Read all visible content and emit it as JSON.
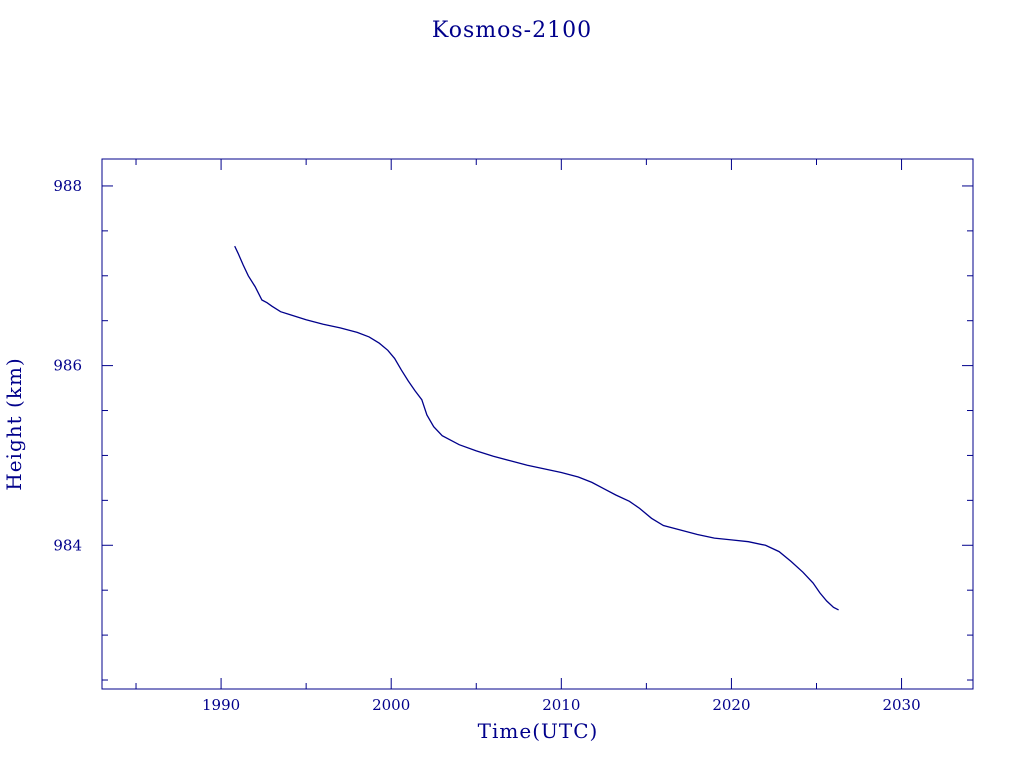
{
  "chart_data": {
    "type": "line",
    "title": "Kosmos-2100",
    "xlabel": "Time(UTC)",
    "ylabel": "Height (km)",
    "xlim": [
      1983,
      2034.2
    ],
    "ylim": [
      982.4,
      988.3
    ],
    "xticks": [
      1990,
      2000,
      2010,
      2020,
      2030
    ],
    "xtick_labels": [
      "1990",
      "2000",
      "2010",
      "2020",
      "2030"
    ],
    "yticks": [
      984,
      986,
      988
    ],
    "ytick_labels": [
      "984",
      "986",
      "988"
    ],
    "grid": false,
    "color": "#00008B",
    "series": [
      {
        "x": [
          1990.8,
          1991.0,
          1991.3,
          1991.6,
          1992.0,
          1992.4,
          1992.7,
          1993.0,
          1993.5,
          1994.0,
          1995.0,
          1996.0,
          1997.0,
          1998.0,
          1998.7,
          1999.3,
          1999.8,
          2000.2,
          2000.6,
          2001.0,
          2001.4,
          2001.8,
          2002.1,
          2002.5,
          2003.0,
          2003.5,
          2004.0,
          2005.0,
          2006.0,
          2007.0,
          2008.0,
          2009.0,
          2010.0,
          2011.0,
          2011.8,
          2012.5,
          2013.2,
          2014.0,
          2014.6,
          2015.3,
          2016.0,
          2017.0,
          2018.0,
          2019.0,
          2020.0,
          2021.0,
          2022.0,
          2022.8,
          2023.5,
          2024.2,
          2024.8,
          2025.2,
          2025.6,
          2026.0,
          2026.3
        ],
        "y": [
          987.33,
          987.25,
          987.12,
          987.0,
          986.88,
          986.73,
          986.7,
          986.66,
          986.6,
          986.57,
          986.51,
          986.46,
          986.42,
          986.37,
          986.32,
          986.25,
          986.17,
          986.08,
          985.95,
          985.83,
          985.72,
          985.62,
          985.45,
          985.32,
          985.22,
          985.17,
          985.12,
          985.05,
          984.99,
          984.94,
          984.89,
          984.85,
          984.81,
          984.76,
          984.7,
          984.63,
          984.56,
          984.49,
          984.41,
          984.3,
          984.22,
          984.17,
          984.12,
          984.08,
          984.06,
          984.04,
          984.0,
          983.93,
          983.82,
          983.7,
          983.58,
          983.47,
          983.38,
          983.31,
          983.28
        ]
      }
    ]
  }
}
